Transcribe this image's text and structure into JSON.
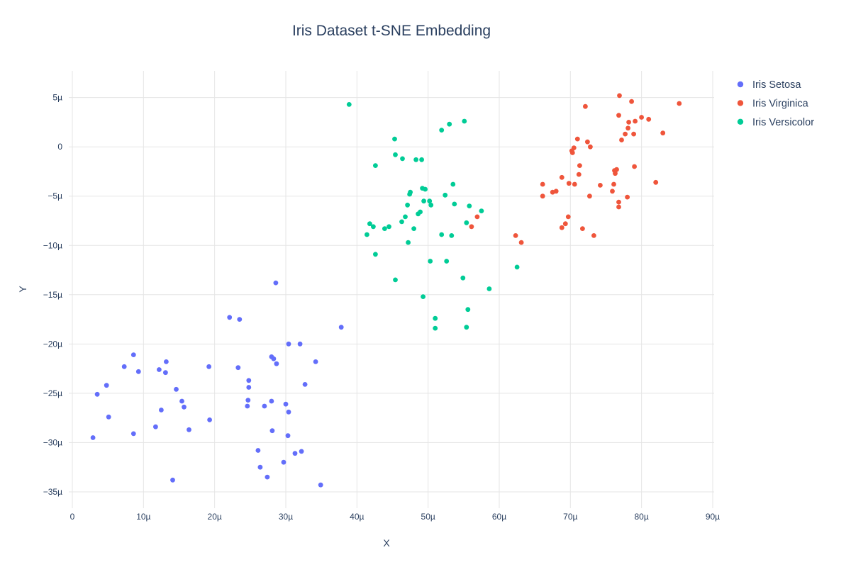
{
  "title": "Iris Dataset t-SNE Embedding",
  "axes": {
    "x_label": "X",
    "y_label": "Y",
    "x_ticks": [
      [
        0,
        "0"
      ],
      [
        10,
        "10µ"
      ],
      [
        20,
        "20µ"
      ],
      [
        30,
        "30µ"
      ],
      [
        40,
        "40µ"
      ],
      [
        50,
        "50µ"
      ],
      [
        60,
        "60µ"
      ],
      [
        70,
        "70µ"
      ],
      [
        80,
        "80µ"
      ],
      [
        90,
        "90µ"
      ]
    ],
    "y_ticks": [
      [
        5,
        "5µ"
      ],
      [
        0,
        "0"
      ],
      [
        -5,
        "−5µ"
      ],
      [
        -10,
        "−10µ"
      ],
      [
        -15,
        "−15µ"
      ],
      [
        -20,
        "−20µ"
      ],
      [
        -25,
        "−25µ"
      ],
      [
        -30,
        "−30µ"
      ],
      [
        -35,
        "−35µ"
      ]
    ]
  },
  "colors": {
    "background": "#ffffff",
    "grid": "#e5e5e5",
    "text": "#2a3f5f",
    "setosa": "#636EFA",
    "virginica": "#EF553B",
    "versicolor": "#00CC96"
  },
  "chart_data": {
    "type": "scatter",
    "title": "Iris Dataset t-SNE Embedding",
    "xlabel": "X",
    "ylabel": "Y",
    "unit": "µ",
    "x_range": [
      -0.5,
      90.2
    ],
    "y_range": [
      -36.5,
      7.7
    ],
    "grid": true,
    "legend_position": "right-outside-top",
    "series": [
      {
        "name": "Iris Setosa",
        "color": "#636EFA",
        "points": [
          [
            8.6,
            -21.1
          ],
          [
            7.3,
            -22.3
          ],
          [
            9.3,
            -22.8
          ],
          [
            13.2,
            -21.8
          ],
          [
            12.2,
            -22.6
          ],
          [
            13.1,
            -22.9
          ],
          [
            4.8,
            -24.2
          ],
          [
            3.5,
            -25.1
          ],
          [
            14.6,
            -24.6
          ],
          [
            15.4,
            -25.8
          ],
          [
            15.7,
            -26.4
          ],
          [
            12.5,
            -26.7
          ],
          [
            5.1,
            -27.4
          ],
          [
            11.7,
            -28.4
          ],
          [
            16.4,
            -28.7
          ],
          [
            8.6,
            -29.1
          ],
          [
            2.9,
            -29.5
          ],
          [
            14.1,
            -33.8
          ],
          [
            28.6,
            -13.8
          ],
          [
            22.1,
            -17.3
          ],
          [
            23.5,
            -17.5
          ],
          [
            30.4,
            -20.0
          ],
          [
            32.0,
            -20.0
          ],
          [
            28.0,
            -21.3
          ],
          [
            28.3,
            -21.5
          ],
          [
            28.7,
            -22.0
          ],
          [
            34.2,
            -21.8
          ],
          [
            19.2,
            -22.3
          ],
          [
            23.3,
            -22.4
          ],
          [
            24.8,
            -23.7
          ],
          [
            24.8,
            -24.4
          ],
          [
            32.7,
            -24.1
          ],
          [
            24.7,
            -25.7
          ],
          [
            24.6,
            -26.3
          ],
          [
            27.0,
            -26.3
          ],
          [
            28.0,
            -25.8
          ],
          [
            30.0,
            -26.1
          ],
          [
            30.4,
            -26.9
          ],
          [
            19.3,
            -27.7
          ],
          [
            28.1,
            -28.8
          ],
          [
            30.3,
            -29.3
          ],
          [
            26.1,
            -30.8
          ],
          [
            31.3,
            -31.1
          ],
          [
            32.2,
            -30.9
          ],
          [
            29.7,
            -32.0
          ],
          [
            26.4,
            -32.5
          ],
          [
            27.4,
            -33.5
          ],
          [
            34.9,
            -34.3
          ],
          [
            37.8,
            -18.3
          ]
        ]
      },
      {
        "name": "Iris Virginica",
        "color": "#EF553B",
        "points": [
          [
            76.9,
            5.2
          ],
          [
            78.6,
            4.6
          ],
          [
            85.3,
            4.4
          ],
          [
            72.1,
            4.1
          ],
          [
            76.8,
            3.2
          ],
          [
            80.0,
            3.0
          ],
          [
            81.0,
            2.8
          ],
          [
            78.2,
            2.5
          ],
          [
            79.1,
            2.6
          ],
          [
            78.1,
            1.9
          ],
          [
            77.7,
            1.3
          ],
          [
            78.9,
            1.3
          ],
          [
            83.0,
            1.4
          ],
          [
            77.2,
            0.7
          ],
          [
            71.0,
            0.8
          ],
          [
            72.4,
            0.5
          ],
          [
            72.8,
            0.0
          ],
          [
            70.5,
            -0.1
          ],
          [
            70.2,
            -0.4
          ],
          [
            70.3,
            -0.6
          ],
          [
            71.3,
            -1.9
          ],
          [
            79.0,
            -2.0
          ],
          [
            76.5,
            -2.3
          ],
          [
            71.2,
            -2.8
          ],
          [
            76.2,
            -2.4
          ],
          [
            76.3,
            -2.7
          ],
          [
            68.8,
            -3.1
          ],
          [
            69.8,
            -3.7
          ],
          [
            70.6,
            -3.8
          ],
          [
            66.1,
            -3.8
          ],
          [
            67.5,
            -4.6
          ],
          [
            68.0,
            -4.5
          ],
          [
            66.1,
            -5.0
          ],
          [
            74.2,
            -3.9
          ],
          [
            76.1,
            -3.8
          ],
          [
            75.9,
            -4.5
          ],
          [
            82.0,
            -3.6
          ],
          [
            72.7,
            -5.0
          ],
          [
            78.0,
            -5.1
          ],
          [
            76.8,
            -5.6
          ],
          [
            76.8,
            -6.1
          ],
          [
            69.7,
            -7.1
          ],
          [
            69.3,
            -7.8
          ],
          [
            68.8,
            -8.2
          ],
          [
            71.7,
            -8.3
          ],
          [
            73.3,
            -9.0
          ],
          [
            62.3,
            -9.0
          ],
          [
            63.1,
            -9.7
          ],
          [
            56.9,
            -7.1
          ],
          [
            56.1,
            -8.1
          ]
        ]
      },
      {
        "name": "Iris Versicolor",
        "color": "#00CC96",
        "points": [
          [
            38.9,
            4.3
          ],
          [
            51.9,
            1.7
          ],
          [
            53.0,
            2.3
          ],
          [
            55.1,
            2.6
          ],
          [
            45.3,
            0.8
          ],
          [
            45.4,
            -0.8
          ],
          [
            46.4,
            -1.2
          ],
          [
            48.3,
            -1.3
          ],
          [
            49.1,
            -1.3
          ],
          [
            42.6,
            -1.9
          ],
          [
            53.5,
            -3.8
          ],
          [
            49.2,
            -4.2
          ],
          [
            49.6,
            -4.3
          ],
          [
            47.5,
            -4.6
          ],
          [
            47.4,
            -4.8
          ],
          [
            52.4,
            -4.9
          ],
          [
            49.4,
            -5.5
          ],
          [
            50.2,
            -5.5
          ],
          [
            50.4,
            -5.9
          ],
          [
            47.1,
            -5.9
          ],
          [
            53.7,
            -5.8
          ],
          [
            55.8,
            -6.0
          ],
          [
            57.5,
            -6.5
          ],
          [
            48.9,
            -6.6
          ],
          [
            48.6,
            -6.8
          ],
          [
            46.8,
            -7.1
          ],
          [
            46.3,
            -7.6
          ],
          [
            41.8,
            -7.8
          ],
          [
            42.3,
            -8.1
          ],
          [
            43.9,
            -8.3
          ],
          [
            44.5,
            -8.1
          ],
          [
            48.0,
            -8.3
          ],
          [
            41.4,
            -8.9
          ],
          [
            55.4,
            -7.7
          ],
          [
            51.9,
            -8.9
          ],
          [
            53.3,
            -9.0
          ],
          [
            47.2,
            -9.7
          ],
          [
            42.6,
            -10.9
          ],
          [
            50.3,
            -11.6
          ],
          [
            52.6,
            -11.6
          ],
          [
            45.4,
            -13.5
          ],
          [
            54.9,
            -13.3
          ],
          [
            58.6,
            -14.4
          ],
          [
            49.3,
            -15.2
          ],
          [
            55.6,
            -16.5
          ],
          [
            51.0,
            -17.4
          ],
          [
            51.0,
            -18.4
          ],
          [
            55.4,
            -18.3
          ],
          [
            62.5,
            -12.2
          ]
        ]
      }
    ]
  }
}
